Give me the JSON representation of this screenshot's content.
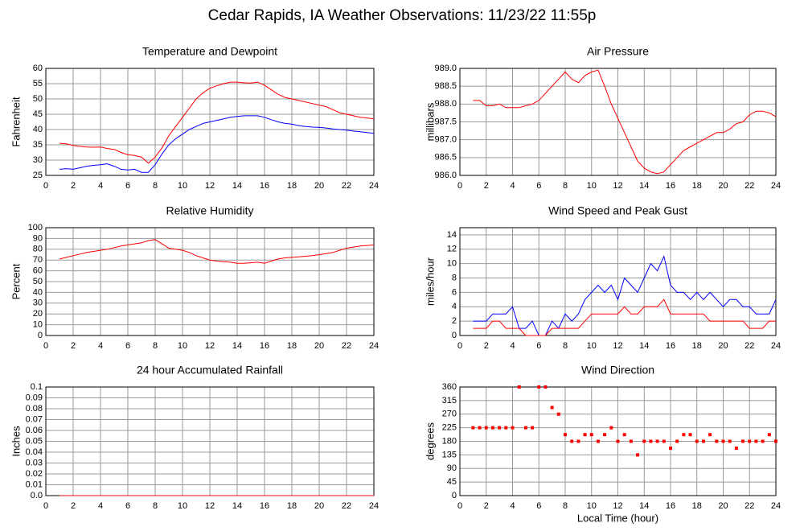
{
  "title": "Cedar Rapids, IA Weather Observations: 11/23/22 11:55p",
  "chart_data": [
    {
      "type": "line",
      "title": "Temperature and Dewpoint",
      "y_label": "Fahrenheit",
      "x": [
        1,
        1.5,
        2,
        2.5,
        3,
        3.5,
        4,
        4.5,
        5,
        5.5,
        6,
        6.5,
        7,
        7.5,
        8,
        8.5,
        9,
        9.5,
        10,
        10.5,
        11,
        11.5,
        12,
        12.5,
        13,
        13.5,
        14,
        14.5,
        15,
        15.5,
        16,
        16.5,
        17,
        17.5,
        18,
        18.5,
        19,
        19.5,
        20,
        20.5,
        21,
        21.5,
        22,
        22.5,
        23,
        23.5,
        24
      ],
      "series": [
        {
          "color": "#ff0000",
          "values": [
            35.5,
            35.3,
            34.8,
            34.5,
            34.3,
            34.2,
            34.3,
            33.8,
            33.5,
            32.5,
            31.8,
            31.5,
            31,
            29,
            31,
            34,
            38,
            41,
            44,
            47,
            50,
            52,
            53.5,
            54.3,
            55,
            55.5,
            55.5,
            55.3,
            55.2,
            55.5,
            54.5,
            53,
            51.5,
            50.5,
            50,
            49.5,
            49,
            48.5,
            48,
            47.5,
            46.5,
            45.5,
            45,
            44.5,
            44,
            43.8,
            43.5
          ]
        },
        {
          "color": "#0000ff",
          "values": [
            27,
            27.2,
            27,
            27.5,
            28,
            28.3,
            28.5,
            28.8,
            28,
            27,
            26.8,
            27,
            26,
            26,
            28.5,
            32,
            35,
            37,
            38.5,
            40,
            41,
            42,
            42.5,
            43,
            43.5,
            44,
            44.3,
            44.5,
            44.5,
            44.5,
            44,
            43.2,
            42.5,
            42,
            41.8,
            41.3,
            41,
            40.8,
            40.7,
            40.5,
            40.2,
            40,
            39.8,
            39.5,
            39.3,
            39,
            38.8
          ]
        }
      ],
      "xlim": [
        0,
        24
      ],
      "xticks": [
        0,
        2,
        4,
        6,
        8,
        10,
        12,
        14,
        16,
        18,
        20,
        22,
        24
      ],
      "ylim": [
        25,
        60
      ],
      "yticks": [
        25,
        30,
        35,
        40,
        45,
        50,
        55,
        60
      ],
      "grid": true
    },
    {
      "type": "line",
      "title": "Air Pressure",
      "y_label": "millibars",
      "x": [
        1,
        1.5,
        2,
        2.5,
        3,
        3.5,
        4,
        4.5,
        5,
        5.5,
        6,
        6.5,
        7,
        7.5,
        8,
        8.5,
        9,
        9.5,
        10,
        10.5,
        11,
        11.5,
        12,
        12.5,
        13,
        13.5,
        14,
        14.5,
        15,
        15.5,
        16,
        16.5,
        17,
        17.5,
        18,
        18.5,
        19,
        19.5,
        20,
        20.5,
        21,
        21.5,
        22,
        22.5,
        23,
        23.5,
        24
      ],
      "series": [
        {
          "color": "#ff0000",
          "values": [
            988.1,
            988.1,
            987.95,
            987.95,
            988.0,
            987.9,
            987.9,
            987.9,
            987.95,
            988.0,
            988.1,
            988.3,
            988.5,
            988.7,
            988.9,
            988.7,
            988.6,
            988.8,
            988.9,
            988.95,
            988.5,
            988.0,
            987.6,
            987.2,
            986.8,
            986.4,
            986.2,
            986.1,
            986.05,
            986.1,
            986.3,
            986.5,
            986.7,
            986.8,
            986.9,
            987.0,
            987.1,
            987.2,
            987.2,
            987.3,
            987.45,
            987.5,
            987.7,
            987.8,
            987.8,
            987.75,
            987.65
          ]
        }
      ],
      "xlim": [
        0,
        24
      ],
      "xticks": [
        0,
        2,
        4,
        6,
        8,
        10,
        12,
        14,
        16,
        18,
        20,
        22,
        24
      ],
      "ylim": [
        986,
        989
      ],
      "yticks": [
        {
          "value": 986,
          "label": "986.0"
        },
        {
          "value": 986.5,
          "label": "986.5"
        },
        {
          "value": 987,
          "label": "987.0"
        },
        {
          "value": 987.5,
          "label": "987.5"
        },
        {
          "value": 988,
          "label": "988.0"
        },
        {
          "value": 988.5,
          "label": "988.5"
        },
        {
          "value": 989,
          "label": "989.0"
        }
      ],
      "grid": true
    },
    {
      "type": "line",
      "title": "Relative Humidity",
      "y_label": "Percent",
      "x": [
        1,
        1.5,
        2,
        2.5,
        3,
        3.5,
        4,
        4.5,
        5,
        5.5,
        6,
        6.5,
        7,
        7.5,
        8,
        8.5,
        9,
        9.5,
        10,
        10.5,
        11,
        11.5,
        12,
        12.5,
        13,
        13.5,
        14,
        14.5,
        15,
        15.5,
        16,
        16.5,
        17,
        17.5,
        18,
        18.5,
        19,
        19.5,
        20,
        20.5,
        21,
        21.5,
        22,
        22.5,
        23,
        23.5,
        24
      ],
      "series": [
        {
          "color": "#ff0000",
          "values": [
            71,
            72.5,
            74,
            75.5,
            77,
            78,
            79,
            80,
            81.5,
            83,
            84,
            85,
            86,
            88,
            89,
            85,
            81,
            80,
            79,
            77,
            74,
            72,
            70,
            69,
            68.5,
            68,
            67,
            67,
            67.5,
            68,
            67,
            69,
            71,
            72,
            72.5,
            73,
            73.5,
            74,
            75,
            76,
            77,
            79,
            81,
            82,
            83,
            83.5,
            84
          ]
        }
      ],
      "xlim": [
        0,
        24
      ],
      "xticks": [
        0,
        2,
        4,
        6,
        8,
        10,
        12,
        14,
        16,
        18,
        20,
        22,
        24
      ],
      "ylim": [
        0,
        100
      ],
      "yticks": [
        0,
        10,
        20,
        30,
        40,
        50,
        60,
        70,
        80,
        90,
        100
      ],
      "grid": true
    },
    {
      "type": "line",
      "title": "Wind Speed and Peak Gust",
      "y_label": "miles/hour",
      "x": [
        1,
        1.5,
        2,
        2.5,
        3,
        3.5,
        4,
        4.5,
        5,
        5.5,
        6,
        6.5,
        7,
        7.5,
        8,
        8.5,
        9,
        9.5,
        10,
        10.5,
        11,
        11.5,
        12,
        12.5,
        13,
        13.5,
        14,
        14.5,
        15,
        15.5,
        16,
        16.5,
        17,
        17.5,
        18,
        18.5,
        19,
        19.5,
        20,
        20.5,
        21,
        21.5,
        22,
        22.5,
        23,
        23.5,
        24
      ],
      "series": [
        {
          "color": "#0000ff",
          "values": [
            2,
            2,
            2,
            3,
            3,
            3,
            4,
            1,
            1,
            2,
            0,
            0,
            2,
            1,
            3,
            2,
            3,
            5,
            6,
            7,
            6,
            7,
            5,
            8,
            7,
            6,
            8,
            10,
            9,
            11,
            7,
            6,
            6,
            5,
            6,
            5,
            6,
            5,
            4,
            5,
            5,
            4,
            4,
            3,
            3,
            3,
            5
          ]
        },
        {
          "color": "#ff0000",
          "values": [
            1,
            1,
            1,
            2,
            2,
            1,
            1,
            1,
            0,
            0,
            0,
            0,
            1,
            1,
            1,
            1,
            1,
            2,
            3,
            3,
            3,
            3,
            3,
            4,
            3,
            3,
            4,
            4,
            4,
            5,
            3,
            3,
            3,
            3,
            3,
            3,
            2,
            2,
            2,
            2,
            2,
            2,
            1,
            1,
            1,
            2,
            2
          ]
        }
      ],
      "xlim": [
        0,
        24
      ],
      "xticks": [
        0,
        2,
        4,
        6,
        8,
        10,
        12,
        14,
        16,
        18,
        20,
        22,
        24
      ],
      "ylim": [
        0,
        15
      ],
      "yticks": [
        0,
        2,
        4,
        6,
        8,
        10,
        12,
        14
      ],
      "grid": true
    },
    {
      "type": "line",
      "title": "24 hour Accumulated Rainfall",
      "y_label": "Inches",
      "x": [
        1,
        24
      ],
      "series": [
        {
          "color": "#ff0000",
          "values": [
            0,
            0
          ]
        }
      ],
      "xlim": [
        0,
        24
      ],
      "xticks": [
        0,
        2,
        4,
        6,
        8,
        10,
        12,
        14,
        16,
        18,
        20,
        22,
        24
      ],
      "ylim": [
        0,
        0.1
      ],
      "yticks": [
        {
          "value": 0,
          "label": "0.0"
        },
        0.01,
        0.02,
        0.03,
        0.04,
        0.05,
        0.06,
        0.07,
        0.08,
        0.09,
        0.1
      ],
      "grid": true
    },
    {
      "type": "scatter",
      "title": "Wind Direction",
      "y_label": "degrees",
      "x_label": "Local Time (hour)",
      "x": [
        1,
        1.5,
        2,
        2.5,
        3,
        3.5,
        4,
        4.5,
        5,
        5.5,
        6,
        6.5,
        7,
        7.5,
        8,
        8.5,
        9,
        9.5,
        10,
        10.5,
        11,
        11.5,
        12,
        12.5,
        13,
        13.5,
        14,
        14.5,
        15,
        15.5,
        16,
        16.5,
        17,
        17.5,
        18,
        18.5,
        19,
        19.5,
        20,
        20.5,
        21,
        21.5,
        22,
        22.5,
        23,
        23.5,
        24
      ],
      "series": [
        {
          "color": "#ff0000",
          "values": [
            225,
            225,
            225,
            225,
            225,
            225,
            225,
            360,
            225,
            225,
            360,
            360,
            292,
            270,
            202,
            180,
            180,
            202,
            202,
            180,
            202,
            225,
            180,
            202,
            180,
            135,
            180,
            180,
            180,
            180,
            157,
            180,
            202,
            202,
            180,
            180,
            202,
            180,
            180,
            180,
            157,
            180,
            180,
            180,
            180,
            202,
            180
          ]
        }
      ],
      "xlim": [
        0,
        24
      ],
      "xticks": [
        0,
        2,
        4,
        6,
        8,
        10,
        12,
        14,
        16,
        18,
        20,
        22,
        24
      ],
      "ylim": [
        0,
        360
      ],
      "yticks": [
        0,
        45,
        90,
        135,
        180,
        225,
        270,
        315,
        360
      ],
      "grid": true
    }
  ]
}
